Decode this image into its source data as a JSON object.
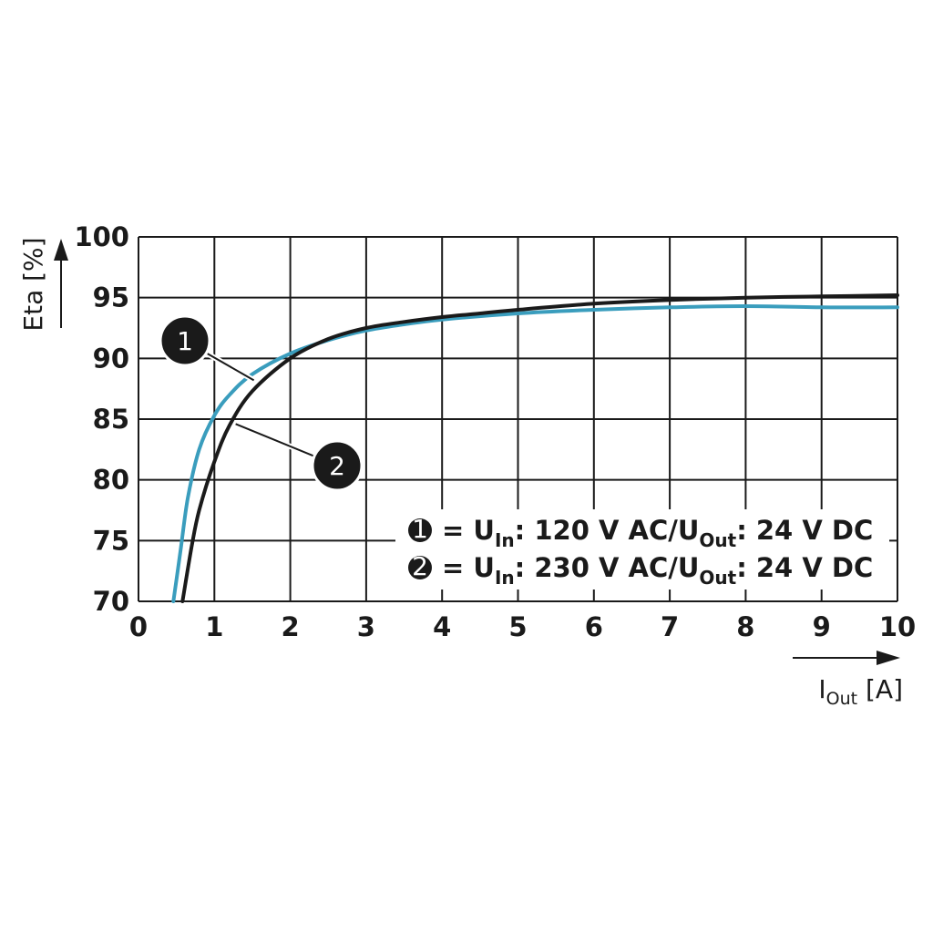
{
  "chart_data": {
    "type": "line",
    "xlabel": {
      "main": "I",
      "sub": "Out",
      "unit": " [A]"
    },
    "ylabel": "Eta [%]",
    "xlim": [
      0,
      10
    ],
    "ylim": [
      70,
      100
    ],
    "x_ticks": [
      "0",
      "1",
      "2",
      "3",
      "4",
      "5",
      "6",
      "7",
      "8",
      "9",
      "10"
    ],
    "y_ticks": [
      "100",
      "95",
      "90",
      "85",
      "80",
      "75",
      "70"
    ],
    "grid": true,
    "legend_position": "bottom-right",
    "series": [
      {
        "name": "1",
        "color": "#1a1a1a",
        "legend": {
          "pre": "= U",
          "sub1": "In",
          "mid": ": 120 V AC/U",
          "sub2": "Out",
          "post": ": 24 V DC"
        },
        "points": [
          [
            0.58,
            70
          ],
          [
            0.7,
            74.5
          ],
          [
            0.8,
            77.5
          ],
          [
            1.0,
            81.5
          ],
          [
            1.2,
            84.5
          ],
          [
            1.5,
            87.3
          ],
          [
            2.0,
            90.0
          ],
          [
            2.5,
            91.6
          ],
          [
            3.0,
            92.5
          ],
          [
            3.5,
            93.0
          ],
          [
            4.0,
            93.4
          ],
          [
            4.5,
            93.7
          ],
          [
            5.0,
            94.0
          ],
          [
            6.0,
            94.5
          ],
          [
            7.0,
            94.8
          ],
          [
            8.0,
            95.0
          ],
          [
            9.0,
            95.1
          ],
          [
            10.0,
            95.2
          ]
        ]
      },
      {
        "name": "2",
        "color": "#3a9dbd",
        "legend": {
          "pre": "= U",
          "sub1": "In",
          "mid": ": 230 V AC/U",
          "sub2": "Out",
          "post": ": 24 V DC"
        },
        "points": [
          [
            0.46,
            70
          ],
          [
            0.55,
            74
          ],
          [
            0.65,
            78.5
          ],
          [
            0.8,
            82.5
          ],
          [
            1.0,
            85.3
          ],
          [
            1.2,
            87.0
          ],
          [
            1.5,
            88.7
          ],
          [
            2.0,
            90.4
          ],
          [
            2.5,
            91.5
          ],
          [
            3.0,
            92.3
          ],
          [
            3.5,
            92.8
          ],
          [
            4.0,
            93.2
          ],
          [
            5.0,
            93.7
          ],
          [
            6.0,
            94.0
          ],
          [
            7.0,
            94.2
          ],
          [
            8.0,
            94.3
          ],
          [
            9.0,
            94.2
          ],
          [
            10.0,
            94.2
          ]
        ]
      }
    ]
  }
}
